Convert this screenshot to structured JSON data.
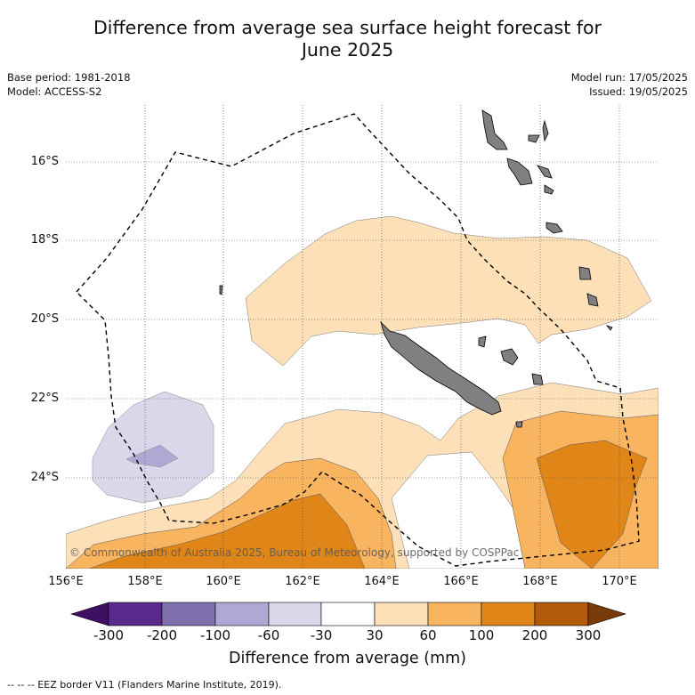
{
  "title_line1": "Difference from average sea surface height forecast for",
  "title_line2": "June 2025",
  "base_period": "Base period: 1981-2018",
  "model": "Model: ACCESS-S2",
  "model_run": "Model run: 17/05/2025",
  "issued": "Issued: 19/05/2025",
  "lat_labels": [
    "16°S",
    "18°S",
    "20°S",
    "22°S",
    "24°S"
  ],
  "lon_labels": [
    "156°E",
    "158°E",
    "160°E",
    "162°E",
    "164°E",
    "166°E",
    "168°E",
    "170°E"
  ],
  "copyright": "© Commonwealth of Australia 2025, Bureau of Meteorology, supported by COSPPac",
  "colorbar": {
    "ticks": [
      "-300",
      "-200",
      "-100",
      "-60",
      "-30",
      "30",
      "60",
      "100",
      "200",
      "300"
    ],
    "colors": [
      "#3f0f63",
      "#5a2a8c",
      "#8070b0",
      "#aea8d2",
      "#d8d8ea",
      "#ffffff",
      "#fde0b8",
      "#f9b460",
      "#e08618",
      "#b05a0a",
      "#7a3a08"
    ],
    "title": "Difference from average (mm)"
  },
  "legend_text": "--  --  -- EEZ border V11 (Flanders Marine Institute, 2019).",
  "colors": {
    "land": "#808080",
    "contour_30_60": "#fde0b8",
    "contour_60_100": "#f9b460",
    "contour_100_200": "#e08618",
    "contour_neg60_neg30": "#d8d8ea",
    "contour_neg100_neg60": "#aea8d2"
  }
}
